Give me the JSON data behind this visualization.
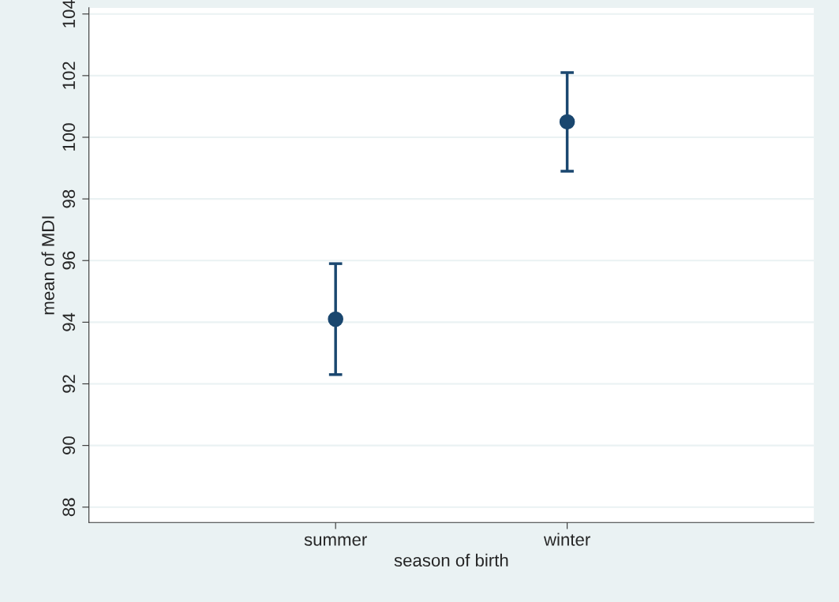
{
  "chart_data": {
    "type": "scatter",
    "xlabel": "season of birth",
    "ylabel": "mean of MDI",
    "categories": [
      "summer",
      "winter"
    ],
    "series": [
      {
        "color": "#1a476f",
        "values": [
          94.1,
          100.5
        ],
        "errors": [
          [
            92.3,
            95.9
          ],
          [
            98.9,
            102.1
          ]
        ]
      }
    ],
    "ylim": [
      87.5,
      104.2
    ],
    "yticks": [
      88,
      90,
      92,
      94,
      96,
      98,
      100,
      102,
      104
    ],
    "grid": "y",
    "marker": "circle"
  }
}
